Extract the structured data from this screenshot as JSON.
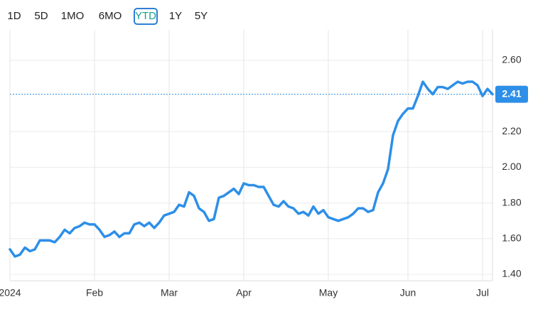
{
  "range_buttons": [
    "1D",
    "5D",
    "1MO",
    "6MO",
    "YTD",
    "1Y",
    "5Y"
  ],
  "selected_range": "YTD",
  "chart_data": {
    "type": "line",
    "categories": [
      "2024",
      null,
      null,
      null,
      null,
      null,
      null,
      null,
      null,
      null,
      null,
      null,
      null,
      null,
      null,
      null,
      null,
      "Feb",
      null,
      null,
      null,
      null,
      null,
      null,
      null,
      null,
      null,
      null,
      null,
      null,
      null,
      null,
      "Mar",
      null,
      null,
      null,
      null,
      null,
      null,
      null,
      null,
      null,
      null,
      null,
      null,
      null,
      null,
      "Apr",
      null,
      null,
      null,
      null,
      null,
      null,
      null,
      null,
      null,
      null,
      null,
      null,
      null,
      null,
      null,
      null,
      "May",
      null,
      null,
      null,
      null,
      null,
      null,
      null,
      null,
      null,
      null,
      null,
      null,
      null,
      null,
      null,
      "Jun",
      null,
      null,
      null,
      null,
      null,
      null,
      null,
      null,
      null,
      null,
      null,
      null,
      null,
      null,
      "Jul",
      null,
      null
    ],
    "values": [
      1.54,
      1.5,
      1.51,
      1.55,
      1.53,
      1.54,
      1.59,
      1.59,
      1.59,
      1.58,
      1.61,
      1.65,
      1.63,
      1.66,
      1.67,
      1.69,
      1.68,
      1.68,
      1.65,
      1.61,
      1.62,
      1.64,
      1.61,
      1.63,
      1.63,
      1.68,
      1.69,
      1.67,
      1.69,
      1.66,
      1.69,
      1.73,
      1.74,
      1.75,
      1.79,
      1.78,
      1.86,
      1.84,
      1.77,
      1.75,
      1.7,
      1.71,
      1.83,
      1.84,
      1.86,
      1.88,
      1.85,
      1.91,
      1.9,
      1.9,
      1.89,
      1.89,
      1.84,
      1.79,
      1.78,
      1.81,
      1.78,
      1.77,
      1.74,
      1.75,
      1.73,
      1.78,
      1.74,
      1.76,
      1.72,
      1.71,
      1.7,
      1.71,
      1.72,
      1.74,
      1.77,
      1.77,
      1.75,
      1.76,
      1.86,
      1.91,
      1.99,
      2.18,
      2.26,
      2.3,
      2.33,
      2.33,
      2.4,
      2.48,
      2.44,
      2.41,
      2.45,
      2.45,
      2.44,
      2.46,
      2.48,
      2.47,
      2.48,
      2.48,
      2.46,
      2.4,
      2.44,
      2.41
    ],
    "color": "#2d8fe8",
    "ylim": [
      1.364,
      2.771
    ],
    "yticks": [
      {
        "value": 1.4,
        "label": "1.40"
      },
      {
        "value": 1.6,
        "label": "1.60"
      },
      {
        "value": 1.8,
        "label": "1.80"
      },
      {
        "value": 2.0,
        "label": "2.00"
      },
      {
        "value": 2.2,
        "label": "2.20"
      },
      {
        "value": 2.6,
        "label": "2.60"
      }
    ],
    "last_price": {
      "value": 2.41,
      "label": "2.41"
    },
    "grid": true
  }
}
